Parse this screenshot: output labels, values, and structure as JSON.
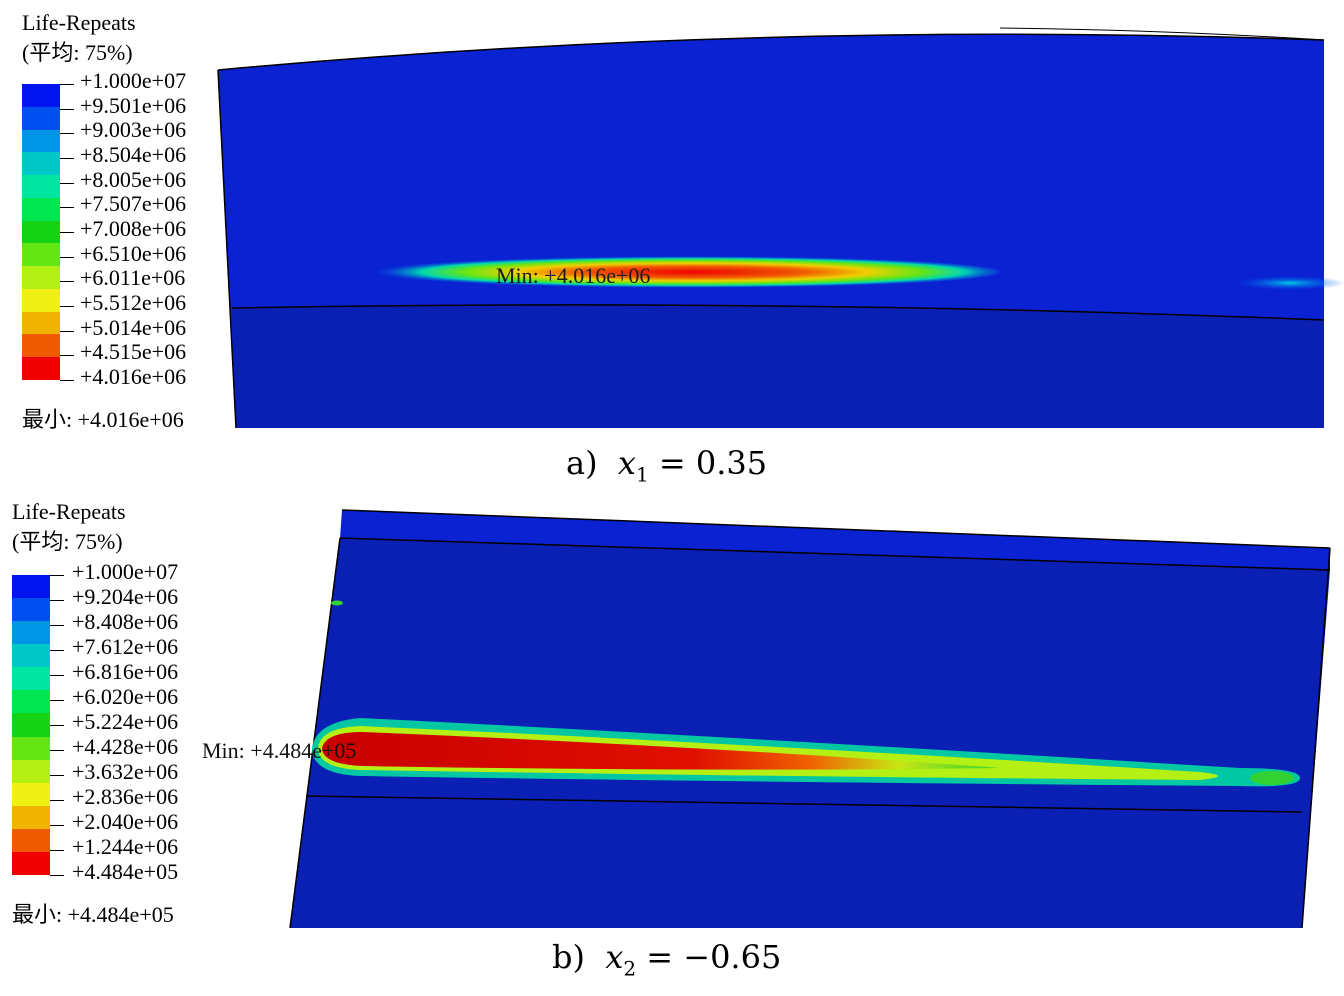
{
  "figure": {
    "panels": [
      {
        "legend": {
          "title": "Life-Repeats",
          "subtitle": "(平均: 75%)",
          "values": [
            "+1.000e+07",
            "+9.501e+06",
            "+9.003e+06",
            "+8.504e+06",
            "+8.005e+06",
            "+7.507e+06",
            "+7.008e+06",
            "+6.510e+06",
            "+6.011e+06",
            "+5.512e+06",
            "+5.014e+06",
            "+4.515e+06",
            "+4.016e+06"
          ],
          "colors": [
            "#0014f0",
            "#0050f0",
            "#0096e6",
            "#00c8c8",
            "#00e6a0",
            "#00e650",
            "#14d214",
            "#64e614",
            "#b4f014",
            "#f0f014",
            "#f0b400",
            "#f05a00",
            "#f00000"
          ],
          "min_label": "最小: +4.016e+06"
        },
        "annotation": "Min: +4.016e+06",
        "caption": {
          "prefix": "a)",
          "variable": "x",
          "subscript": "1",
          "equation": "= 0.35"
        }
      },
      {
        "legend": {
          "title": "Life-Repeats",
          "subtitle": "(平均: 75%)",
          "values": [
            "+1.000e+07",
            "+9.204e+06",
            "+8.408e+06",
            "+7.612e+06",
            "+6.816e+06",
            "+6.020e+06",
            "+5.224e+06",
            "+4.428e+06",
            "+3.632e+06",
            "+2.836e+06",
            "+2.040e+06",
            "+1.244e+06",
            "+4.484e+05"
          ],
          "colors": [
            "#0014f0",
            "#0050f0",
            "#0096e6",
            "#00c8c8",
            "#00e6a0",
            "#00e650",
            "#14d214",
            "#64e614",
            "#b4f014",
            "#f0f014",
            "#f0b400",
            "#f05a00",
            "#f00000"
          ],
          "min_label": "最小: +4.484e+05"
        },
        "annotation": "Min: +4.484e+05",
        "caption": {
          "prefix": "b)",
          "variable": "x",
          "subscript": "2",
          "equation": "= −0.65"
        }
      }
    ],
    "model_colors": {
      "body": "#0a1fb4",
      "top_face": "#0a22d2",
      "edge": "#000000"
    }
  }
}
